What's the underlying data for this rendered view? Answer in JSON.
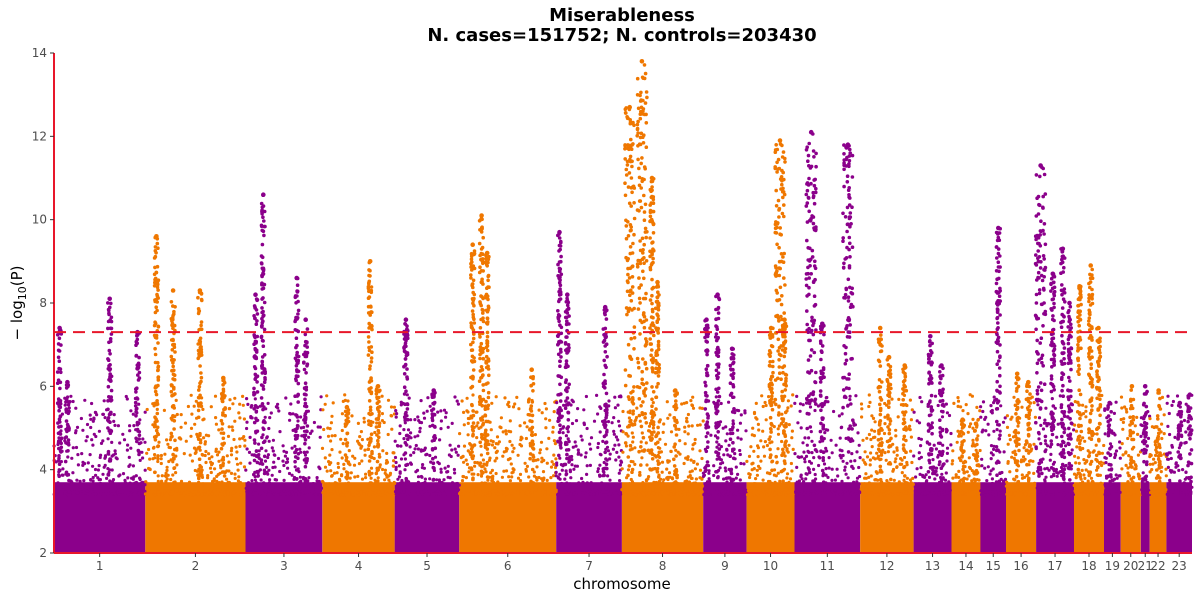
{
  "chart_data": {
    "type": "scatter",
    "subtype": "manhattan",
    "title": "Miserableness",
    "subtitle": "N. cases=151752; N. controls=203430",
    "xlabel": "chromosome",
    "ylabel": "− log10(P)",
    "ylabel_parts": {
      "prefix": "− log",
      "subscript": "10",
      "suffix": "(P)"
    },
    "ylim": [
      2,
      14
    ],
    "yticks": [
      2,
      4,
      6,
      8,
      10,
      12,
      14
    ],
    "significance_threshold": 7.3,
    "threshold_color": "#e8172a",
    "axis_color": "#e8172a",
    "colors": {
      "odd": "#8b008b",
      "even": "#ef7700"
    },
    "chromosomes": [
      {
        "label": "1",
        "start": 0.0,
        "end": 8.2,
        "peaks": [
          [
            0.5,
            7.4
          ],
          [
            1.2,
            6.1
          ],
          [
            5.0,
            8.1
          ],
          [
            7.5,
            7.3
          ]
        ]
      },
      {
        "label": "2",
        "start": 8.2,
        "end": 17.2,
        "peaks": [
          [
            1.0,
            9.6
          ],
          [
            2.5,
            8.3
          ],
          [
            4.9,
            8.3
          ],
          [
            7.0,
            6.2
          ]
        ]
      },
      {
        "label": "3",
        "start": 17.2,
        "end": 24.1,
        "peaks": [
          [
            0.9,
            8.2
          ],
          [
            1.6,
            10.6
          ],
          [
            4.6,
            8.6
          ],
          [
            5.4,
            7.6
          ]
        ]
      },
      {
        "label": "4",
        "start": 24.1,
        "end": 30.6,
        "peaks": [
          [
            2.2,
            5.5
          ],
          [
            4.3,
            9.0
          ],
          [
            5.0,
            6.0
          ]
        ]
      },
      {
        "label": "5",
        "start": 30.6,
        "end": 36.4,
        "peaks": [
          [
            1.0,
            7.6
          ],
          [
            3.5,
            5.9
          ]
        ]
      },
      {
        "label": "6",
        "start": 36.4,
        "end": 45.1,
        "peaks": [
          [
            1.2,
            9.4
          ],
          [
            2.0,
            10.1
          ],
          [
            2.5,
            9.2
          ],
          [
            6.5,
            6.4
          ]
        ]
      },
      {
        "label": "7",
        "start": 45.1,
        "end": 51.0,
        "peaks": [
          [
            0.3,
            9.7
          ],
          [
            1.0,
            8.2
          ],
          [
            4.4,
            7.9
          ]
        ]
      },
      {
        "label": "8",
        "start": 51.0,
        "end": 58.3,
        "peaks": [
          [
            0.7,
            12.7
          ],
          [
            1.8,
            13.8
          ],
          [
            2.7,
            11.0
          ],
          [
            3.2,
            8.5
          ],
          [
            4.8,
            5.9
          ]
        ]
      },
      {
        "label": "9",
        "start": 58.3,
        "end": 62.2,
        "peaks": [
          [
            0.3,
            7.6
          ],
          [
            1.3,
            8.2
          ],
          [
            2.6,
            6.9
          ]
        ]
      },
      {
        "label": "10",
        "start": 62.2,
        "end": 66.5,
        "peaks": [
          [
            2.2,
            7.4
          ],
          [
            3.0,
            11.9
          ],
          [
            3.4,
            7.6
          ]
        ]
      },
      {
        "label": "11",
        "start": 66.5,
        "end": 72.4,
        "peaks": [
          [
            1.5,
            12.1
          ],
          [
            2.5,
            7.5
          ],
          [
            4.8,
            11.8
          ]
        ]
      },
      {
        "label": "12",
        "start": 72.4,
        "end": 77.2,
        "peaks": [
          [
            1.8,
            7.4
          ],
          [
            2.6,
            6.7
          ],
          [
            4.0,
            6.5
          ]
        ]
      },
      {
        "label": "13",
        "start": 77.2,
        "end": 80.6,
        "peaks": [
          [
            1.5,
            7.2
          ],
          [
            2.5,
            6.5
          ]
        ]
      },
      {
        "label": "14",
        "start": 80.6,
        "end": 83.2,
        "peaks": [
          [
            1.0,
            5.2
          ],
          [
            2.2,
            5.1
          ]
        ]
      },
      {
        "label": "15",
        "start": 83.2,
        "end": 85.5,
        "peaks": [
          [
            1.6,
            9.8
          ]
        ]
      },
      {
        "label": "16",
        "start": 85.5,
        "end": 88.2,
        "peaks": [
          [
            1.0,
            6.3
          ],
          [
            2.0,
            6.1
          ]
        ]
      },
      {
        "label": "17",
        "start": 88.2,
        "end": 91.6,
        "peaks": [
          [
            0.4,
            11.3
          ],
          [
            1.5,
            8.7
          ],
          [
            2.4,
            9.3
          ],
          [
            3.0,
            8.0
          ]
        ]
      },
      {
        "label": "18",
        "start": 91.6,
        "end": 94.3,
        "peaks": [
          [
            0.5,
            8.4
          ],
          [
            1.5,
            8.9
          ],
          [
            2.2,
            7.4
          ]
        ]
      },
      {
        "label": "19",
        "start": 94.3,
        "end": 95.8,
        "peaks": [
          [
            0.5,
            5.6
          ]
        ]
      },
      {
        "label": "20",
        "start": 95.8,
        "end": 97.6,
        "peaks": [
          [
            1.0,
            6.0
          ]
        ]
      },
      {
        "label": "21",
        "start": 97.6,
        "end": 98.4,
        "peaks": [
          [
            0.4,
            6.0
          ]
        ]
      },
      {
        "label": "22",
        "start": 98.4,
        "end": 99.9,
        "peaks": [
          [
            0.8,
            5.9
          ]
        ]
      },
      {
        "label": "23",
        "start": 99.9,
        "end": 102.2,
        "peaks": [
          [
            1.2,
            5.6
          ],
          [
            2.1,
            5.8
          ]
        ]
      }
    ]
  }
}
